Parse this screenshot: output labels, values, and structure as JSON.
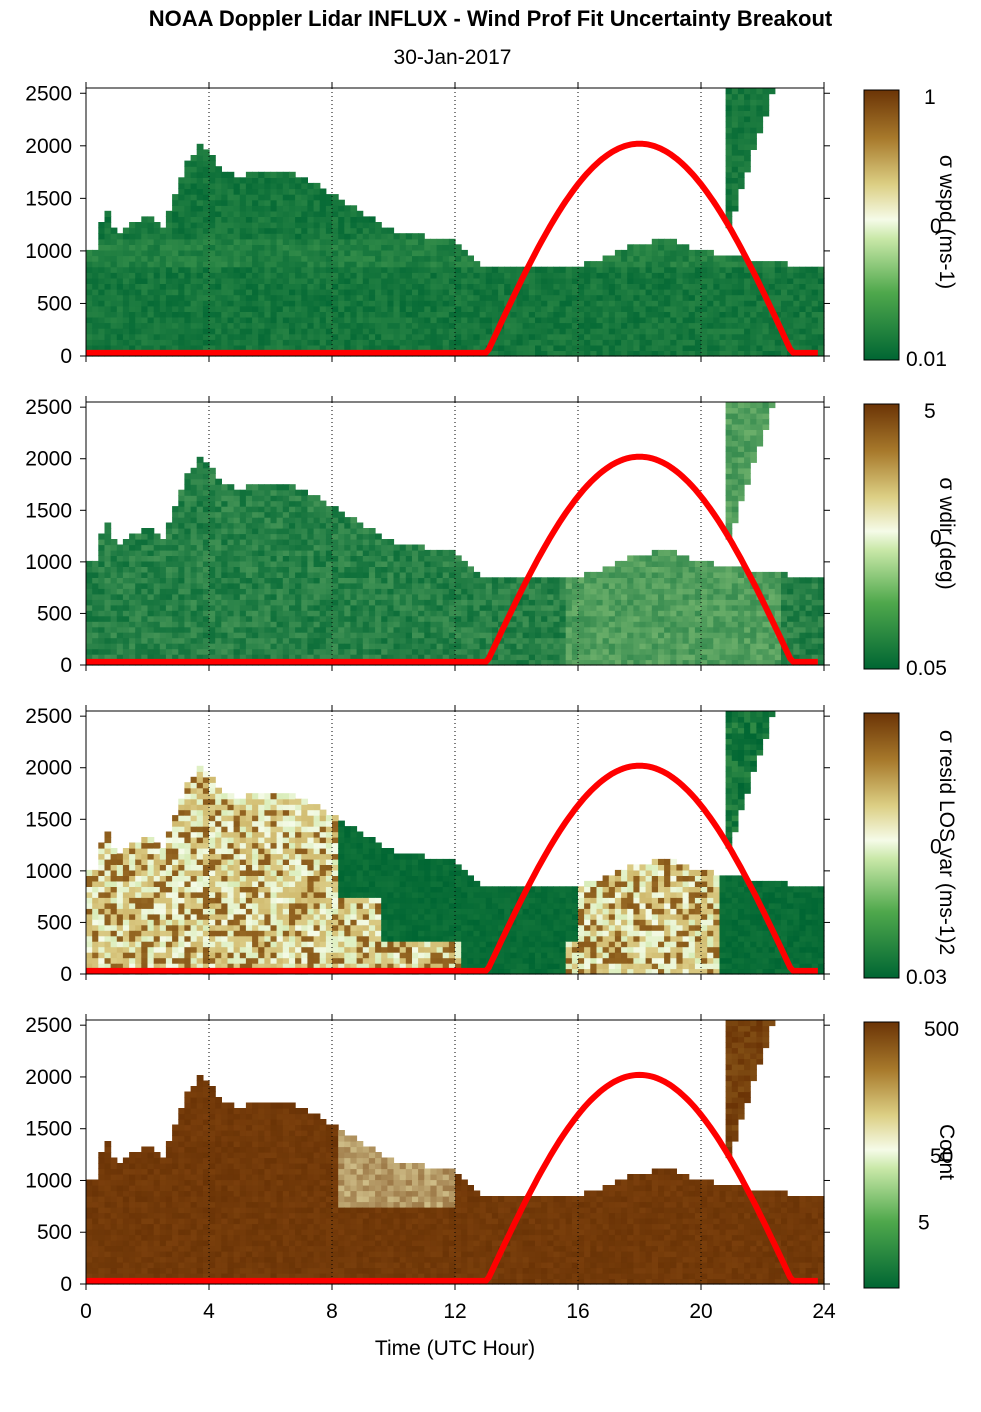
{
  "title": "NOAA Doppler Lidar INFLUX - Wind Prof Fit Uncertainty Breakout",
  "date": "30-Jan-2017",
  "colors": {
    "dark_green": "#006633",
    "light": "#f5fbe8",
    "brown": "#6b3406",
    "sun_curve": "#ff0000"
  },
  "chart_data": [
    {
      "type": "heatmap",
      "ylim": [
        0,
        2550
      ],
      "xlim": [
        0,
        24
      ],
      "y_ticks": [
        "0",
        "500",
        "1000",
        "1500",
        "2000",
        "2500"
      ],
      "x_ticks": [
        "0",
        "4",
        "8",
        "12",
        "16",
        "20",
        "24"
      ],
      "grid": "dotted vertical lines at 4, 8, 12, 16, 20, 24",
      "colorbar": {
        "max_label": "1",
        "mid_label": "0",
        "min_label": "0.01",
        "label": "σ wspd (ms-1)",
        "scale": "log"
      },
      "overlay_curve": {
        "color": "#ff0000",
        "x": [
          13,
          13.5,
          14,
          15,
          16,
          17,
          18,
          19,
          20,
          21,
          22,
          23,
          23.5
        ],
        "y": [
          0,
          300,
          620,
          1200,
          1630,
          1920,
          2020,
          1920,
          1630,
          1200,
          620,
          0,
          0
        ]
      },
      "style": "low_green"
    },
    {
      "type": "heatmap",
      "ylim": [
        0,
        2550
      ],
      "xlim": [
        0,
        24
      ],
      "y_ticks": [
        "0",
        "500",
        "1000",
        "1500",
        "2000",
        "2500"
      ],
      "x_ticks": [
        "0",
        "4",
        "8",
        "12",
        "16",
        "20",
        "24"
      ],
      "grid": "dotted vertical lines at 4, 8, 12, 16, 20, 24",
      "colorbar": {
        "max_label": "5",
        "mid_label": "0",
        "min_label": "0.05",
        "label": "σ wdir (deg)",
        "scale": "log"
      },
      "overlay_curve": {
        "color": "#ff0000",
        "x": [
          13,
          13.5,
          14,
          15,
          16,
          17,
          18,
          19,
          20,
          21,
          22,
          23,
          23.5
        ],
        "y": [
          0,
          300,
          620,
          1200,
          1630,
          1920,
          2020,
          1920,
          1630,
          1200,
          620,
          0,
          0
        ]
      },
      "style": "mid_green"
    },
    {
      "type": "heatmap",
      "ylim": [
        0,
        2550
      ],
      "xlim": [
        0,
        24
      ],
      "y_ticks": [
        "0",
        "500",
        "1000",
        "1500",
        "2000",
        "2500"
      ],
      "x_ticks": [
        "0",
        "4",
        "8",
        "12",
        "16",
        "20",
        "24"
      ],
      "grid": "dotted vertical lines at 4, 8, 12, 16, 20, 24",
      "colorbar": {
        "max_label": "",
        "mid_label": "0",
        "min_label": "0.03",
        "label": "σ resid LOS var (ms-1)2",
        "scale": "log"
      },
      "overlay_curve": {
        "color": "#ff0000",
        "x": [
          13,
          13.5,
          14,
          15,
          16,
          17,
          18,
          19,
          20,
          21,
          22,
          23,
          23.5
        ],
        "y": [
          0,
          300,
          620,
          1200,
          1630,
          1920,
          2020,
          1920,
          1630,
          1200,
          620,
          0,
          0
        ]
      },
      "style": "tan_mix"
    },
    {
      "type": "heatmap",
      "ylim": [
        0,
        2550
      ],
      "xlim": [
        0,
        24
      ],
      "y_ticks": [
        "0",
        "500",
        "1000",
        "1500",
        "2000",
        "2500"
      ],
      "x_ticks": [
        "0",
        "4",
        "8",
        "12",
        "16",
        "20",
        "24"
      ],
      "grid": "dotted vertical lines at 4, 8, 12, 16, 20, 24",
      "colorbar": {
        "max_label": "500",
        "mid_label": "50",
        "low_label": "5",
        "label": "Count",
        "scale": "log"
      },
      "overlay_curve": {
        "color": "#ff0000",
        "x": [
          13,
          13.5,
          14,
          15,
          16,
          17,
          18,
          19,
          20,
          21,
          22,
          23,
          23.5
        ],
        "y": [
          0,
          300,
          620,
          1200,
          1630,
          1920,
          2020,
          1920,
          1630,
          1200,
          620,
          0,
          0
        ]
      },
      "style": "brown_count"
    }
  ],
  "data_extent": {
    "x": [
      0,
      0.3,
      0.6,
      1,
      1.5,
      2,
      2.5,
      3,
      3.3,
      3.7,
      4,
      4.5,
      5,
      6,
      6.5,
      7,
      8,
      9,
      10,
      11,
      12,
      12.8,
      13,
      14,
      15,
      16,
      17,
      18,
      19,
      20,
      21,
      22,
      23,
      23.8
    ],
    "top": [
      980,
      1000,
      1450,
      1120,
      1250,
      1350,
      1230,
      1600,
      1850,
      2000,
      1950,
      1750,
      1720,
      1760,
      1750,
      1700,
      1550,
      1350,
      1200,
      1140,
      1100,
      870,
      870,
      870,
      850,
      850,
      950,
      1080,
      1100,
      1000,
      950,
      900,
      870,
      850
    ]
  },
  "xlabel": "Time (UTC Hour)"
}
